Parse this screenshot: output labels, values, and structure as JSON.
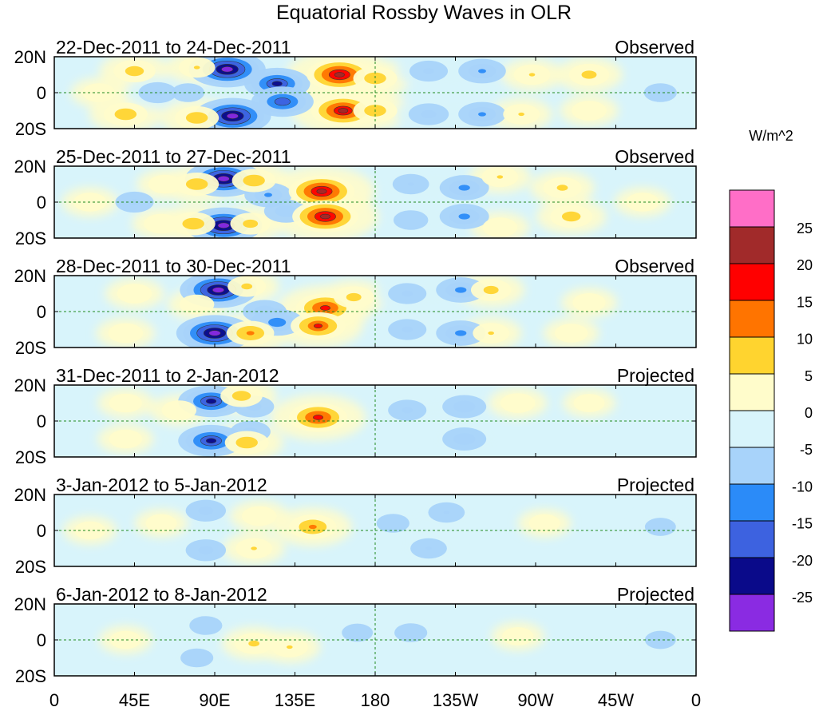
{
  "title": "Equatorial Rossby Waves in OLR",
  "colorbar": {
    "unit_label": "W/m^2",
    "tick_labels": [
      "25",
      "20",
      "15",
      "10",
      "5",
      "0",
      "-5",
      "-10",
      "-15",
      "-20",
      "-25"
    ],
    "colors": [
      "#ff6ec7",
      "#a12a2a",
      "#ff0000",
      "#ff7400",
      "#ffd42f",
      "#fffccb",
      "#d8f4fb",
      "#a8d3fa",
      "#2b8bf8",
      "#3d62e0",
      "#0a0a8a",
      "#8a2be2"
    ]
  },
  "lat_labels": [
    "20N",
    "0",
    "20S"
  ],
  "lon_labels": [
    "0",
    "45E",
    "90E",
    "135E",
    "180",
    "135W",
    "90W",
    "45W",
    "0"
  ],
  "panels": [
    {
      "date_range": "22-Dec-2011 to 24-Dec-2011",
      "status": "Observed"
    },
    {
      "date_range": "25-Dec-2011 to 27-Dec-2011",
      "status": "Observed"
    },
    {
      "date_range": "28-Dec-2011 to 30-Dec-2011",
      "status": "Observed"
    },
    {
      "date_range": "31-Dec-2011 to 2-Jan-2012",
      "status": "Projected"
    },
    {
      "date_range": "3-Jan-2012 to 5-Jan-2012",
      "status": "Projected"
    },
    {
      "date_range": "6-Jan-2012 to 8-Jan-2012",
      "status": "Projected"
    }
  ],
  "map_data": {
    "lon_range": [
      0,
      360
    ],
    "lat_range": [
      -20,
      20
    ],
    "reference_lines": [
      "equator",
      "180"
    ],
    "blobs": [
      [
        {
          "lon": 97,
          "lat": 13,
          "value": -28
        },
        {
          "lon": 100,
          "lat": -13,
          "value": -28
        },
        {
          "lon": 125,
          "lat": 5,
          "value": -22
        },
        {
          "lon": 128,
          "lat": -5,
          "value": -20
        },
        {
          "lon": 160,
          "lat": 10,
          "value": 22
        },
        {
          "lon": 162,
          "lat": -10,
          "value": 21
        },
        {
          "lon": 180,
          "lat": 8,
          "value": 10
        },
        {
          "lon": 180,
          "lat": -10,
          "value": 10
        },
        {
          "lon": 45,
          "lat": 12,
          "value": 9
        },
        {
          "lon": 40,
          "lat": -12,
          "value": 10
        },
        {
          "lon": 25,
          "lat": 0,
          "value": 4
        },
        {
          "lon": 58,
          "lat": 0,
          "value": -7
        },
        {
          "lon": 75,
          "lat": 0,
          "value": -4
        },
        {
          "lon": 80,
          "lat": 14,
          "value": 6
        },
        {
          "lon": 80,
          "lat": -14,
          "value": 10
        },
        {
          "lon": 210,
          "lat": 12,
          "value": -7
        },
        {
          "lon": 210,
          "lat": -12,
          "value": -8
        },
        {
          "lon": 240,
          "lat": 12,
          "value": -12
        },
        {
          "lon": 240,
          "lat": -12,
          "value": -12
        },
        {
          "lon": 268,
          "lat": 10,
          "value": 6
        },
        {
          "lon": 262,
          "lat": -12,
          "value": 6
        },
        {
          "lon": 300,
          "lat": 10,
          "value": 8
        },
        {
          "lon": 300,
          "lat": -10,
          "value": 5
        },
        {
          "lon": 340,
          "lat": 0,
          "value": -4
        }
      ],
      [
        {
          "lon": 95,
          "lat": 13,
          "value": -28
        },
        {
          "lon": 95,
          "lat": -13,
          "value": -28
        },
        {
          "lon": 120,
          "lat": 4,
          "value": -12
        },
        {
          "lon": 130,
          "lat": -5,
          "value": -10
        },
        {
          "lon": 150,
          "lat": 6,
          "value": 22
        },
        {
          "lon": 152,
          "lat": -8,
          "value": 22
        },
        {
          "lon": 112,
          "lat": 12,
          "value": 10
        },
        {
          "lon": 110,
          "lat": -12,
          "value": 8
        },
        {
          "lon": 80,
          "lat": 10,
          "value": 10
        },
        {
          "lon": 78,
          "lat": -12,
          "value": 10
        },
        {
          "lon": 45,
          "lat": 0,
          "value": -7
        },
        {
          "lon": 62,
          "lat": 10,
          "value": 4
        },
        {
          "lon": 60,
          "lat": -12,
          "value": 5
        },
        {
          "lon": 200,
          "lat": 10,
          "value": -6
        },
        {
          "lon": 200,
          "lat": -10,
          "value": -5
        },
        {
          "lon": 230,
          "lat": 8,
          "value": -13
        },
        {
          "lon": 230,
          "lat": -8,
          "value": -13
        },
        {
          "lon": 250,
          "lat": 14,
          "value": 6
        },
        {
          "lon": 250,
          "lat": -14,
          "value": 5
        },
        {
          "lon": 285,
          "lat": 8,
          "value": 7
        },
        {
          "lon": 290,
          "lat": -8,
          "value": 9
        },
        {
          "lon": 330,
          "lat": 0,
          "value": 4
        },
        {
          "lon": 20,
          "lat": 0,
          "value": 4
        }
      ],
      [
        {
          "lon": 92,
          "lat": 12,
          "value": -28
        },
        {
          "lon": 90,
          "lat": -12,
          "value": -28
        },
        {
          "lon": 118,
          "lat": 0,
          "value": -10
        },
        {
          "lon": 125,
          "lat": -6,
          "value": -15
        },
        {
          "lon": 152,
          "lat": 2,
          "value": 18
        },
        {
          "lon": 148,
          "lat": -8,
          "value": 16
        },
        {
          "lon": 168,
          "lat": 8,
          "value": 8
        },
        {
          "lon": 108,
          "lat": 14,
          "value": 7
        },
        {
          "lon": 110,
          "lat": -12,
          "value": 12
        },
        {
          "lon": 80,
          "lat": 4,
          "value": 5
        },
        {
          "lon": 45,
          "lat": 10,
          "value": 5
        },
        {
          "lon": 40,
          "lat": -12,
          "value": 5
        },
        {
          "lon": 198,
          "lat": 10,
          "value": -7
        },
        {
          "lon": 198,
          "lat": -10,
          "value": -7
        },
        {
          "lon": 228,
          "lat": 12,
          "value": -13
        },
        {
          "lon": 228,
          "lat": -12,
          "value": -13
        },
        {
          "lon": 245,
          "lat": 12,
          "value": 8
        },
        {
          "lon": 245,
          "lat": -12,
          "value": 6
        },
        {
          "lon": 300,
          "lat": 5,
          "value": 4
        },
        {
          "lon": 290,
          "lat": -12,
          "value": 4
        }
      ],
      [
        {
          "lon": 88,
          "lat": 11,
          "value": -22
        },
        {
          "lon": 88,
          "lat": -11,
          "value": -22
        },
        {
          "lon": 112,
          "lat": 8,
          "value": -8
        },
        {
          "lon": 110,
          "lat": -6,
          "value": -8
        },
        {
          "lon": 148,
          "lat": 2,
          "value": 18
        },
        {
          "lon": 105,
          "lat": 14,
          "value": 9
        },
        {
          "lon": 108,
          "lat": -12,
          "value": 10
        },
        {
          "lon": 70,
          "lat": 6,
          "value": 5
        },
        {
          "lon": 40,
          "lat": 10,
          "value": 4
        },
        {
          "lon": 40,
          "lat": -10,
          "value": 4
        },
        {
          "lon": 198,
          "lat": 6,
          "value": -7
        },
        {
          "lon": 230,
          "lat": 8,
          "value": -10
        },
        {
          "lon": 230,
          "lat": -10,
          "value": -10
        },
        {
          "lon": 260,
          "lat": 10,
          "value": 5
        },
        {
          "lon": 300,
          "lat": 10,
          "value": 3
        }
      ],
      [
        {
          "lon": 85,
          "lat": 11,
          "value": -8
        },
        {
          "lon": 85,
          "lat": -11,
          "value": -8
        },
        {
          "lon": 145,
          "lat": 2,
          "value": 12
        },
        {
          "lon": 115,
          "lat": 8,
          "value": 5
        },
        {
          "lon": 112,
          "lat": -10,
          "value": 6
        },
        {
          "lon": 60,
          "lat": 4,
          "value": 3
        },
        {
          "lon": 190,
          "lat": 4,
          "value": -4
        },
        {
          "lon": 220,
          "lat": 10,
          "value": -6
        },
        {
          "lon": 210,
          "lat": -10,
          "value": -6
        },
        {
          "lon": 275,
          "lat": 4,
          "value": 3
        },
        {
          "lon": 340,
          "lat": 2,
          "value": -3
        },
        {
          "lon": 20,
          "lat": 0,
          "value": 3
        }
      ],
      [
        {
          "lon": 85,
          "lat": 8,
          "value": -4
        },
        {
          "lon": 80,
          "lat": -10,
          "value": -4
        },
        {
          "lon": 112,
          "lat": -2,
          "value": 7
        },
        {
          "lon": 132,
          "lat": -4,
          "value": 6
        },
        {
          "lon": 170,
          "lat": 4,
          "value": -3
        },
        {
          "lon": 200,
          "lat": 4,
          "value": -4
        },
        {
          "lon": 260,
          "lat": 2,
          "value": 3
        },
        {
          "lon": 340,
          "lat": 0,
          "value": -3
        },
        {
          "lon": 40,
          "lat": 0,
          "value": 3
        }
      ]
    ]
  }
}
